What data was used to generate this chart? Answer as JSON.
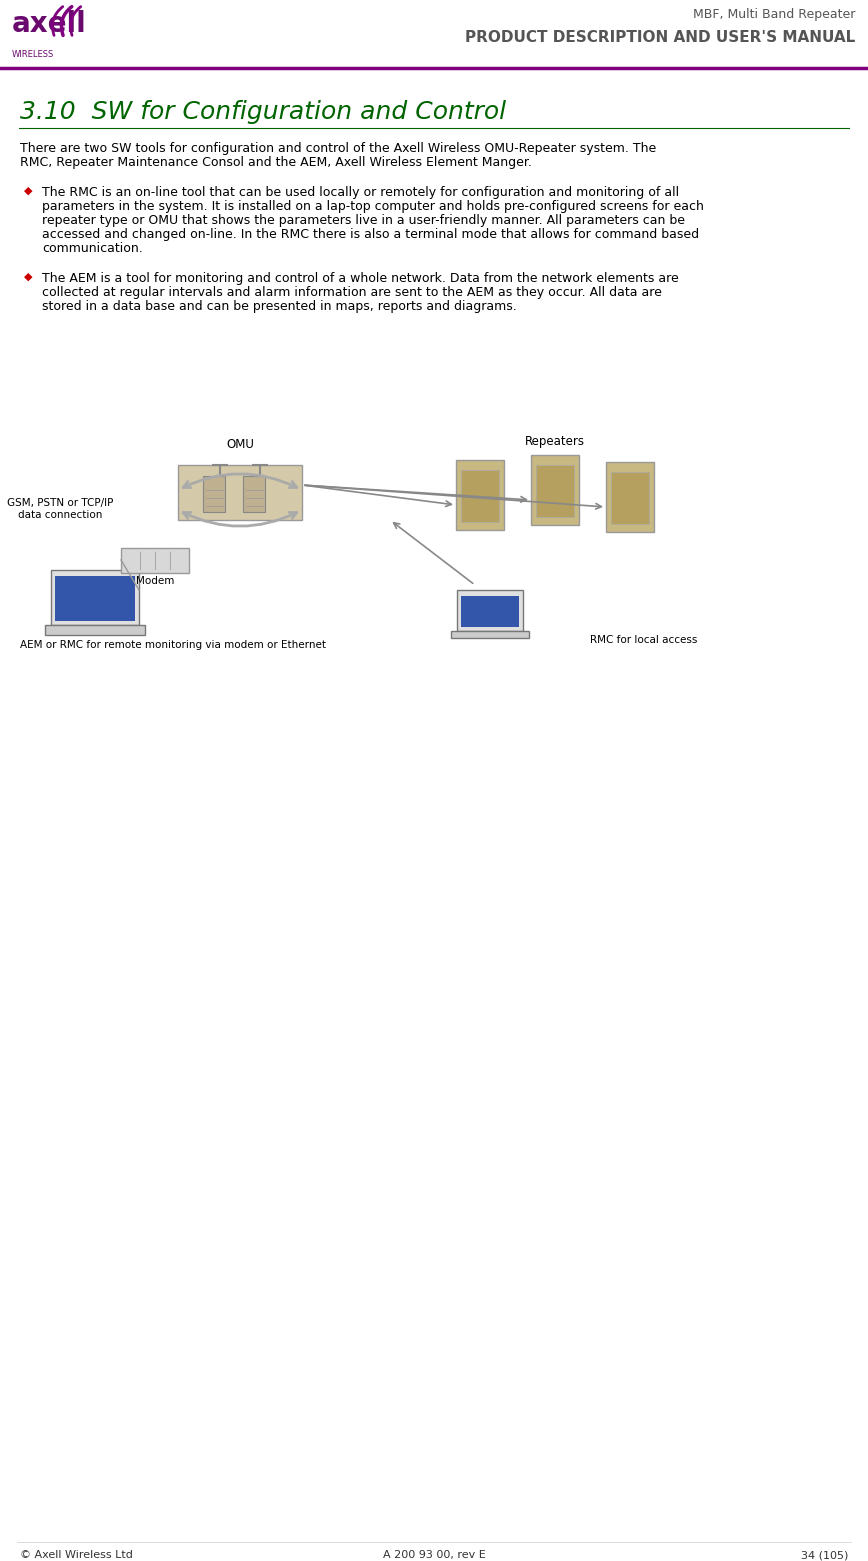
{
  "title_text": "3.10  SW for Configuration and Control",
  "title_color": "#006400",
  "header_right_top": "MBF, Multi Band Repeater",
  "header_right_bottom": "PRODUCT DESCRIPTION AND USER'S MANUAL",
  "header_line_color": "#800080",
  "footer_left": "© Axell Wireless Ltd",
  "footer_center": "A 200 93 00, rev E",
  "footer_right": "34 (105)",
  "body_text_color": "#000000",
  "bullet_color": "#cc0000",
  "intro_text1": "There are two SW tools for configuration and control of the Axell Wireless OMU-Repeater system. The",
  "intro_text2": "RMC, Repeater Maintenance Consol and the AEM, Axell Wireless Element Manger.",
  "bullet1_line1": "The RMC is an on-line tool that can be used locally or remotely for configuration and monitoring of all",
  "bullet1_line2": "parameters in the system. It is installed on a lap-top computer and holds pre-configured screens for each",
  "bullet1_line3": "repeater type or OMU that shows the parameters live in a user-friendly manner. All parameters can be",
  "bullet1_line4": "accessed and changed on-line. In the RMC there is also a terminal mode that allows for command based",
  "bullet1_line5": "communication.",
  "bullet2_line1": "The AEM is a tool for monitoring and control of a whole network. Data from the network elements are",
  "bullet2_line2": "collected at regular intervals and alarm information are sent to the AEM as they occur. All data are",
  "bullet2_line3": "stored in a data base and can be presented in maps, reports and diagrams.",
  "diagram_label_OMU": "OMU",
  "diagram_label_Repeaters": "Repeaters",
  "diagram_label_Modem": "Modem",
  "diagram_label_GSM_line1": "GSM, PSTN or TCP/IP",
  "diagram_label_GSM_line2": "data connection",
  "diagram_label_AEM": "AEM or RMC for remote monitoring via modem or Ethernet",
  "diagram_label_RMC": "RMC for local access",
  "bg_color": "#ffffff",
  "text_font_size": 9,
  "title_font_size": 18,
  "logo_text": "axell",
  "logo_sub": "WIRELESS",
  "logo_color": "#6a0a6e",
  "swirl_color": "#800080",
  "header_top_color": "#555555",
  "header_bottom_color": "#555555"
}
